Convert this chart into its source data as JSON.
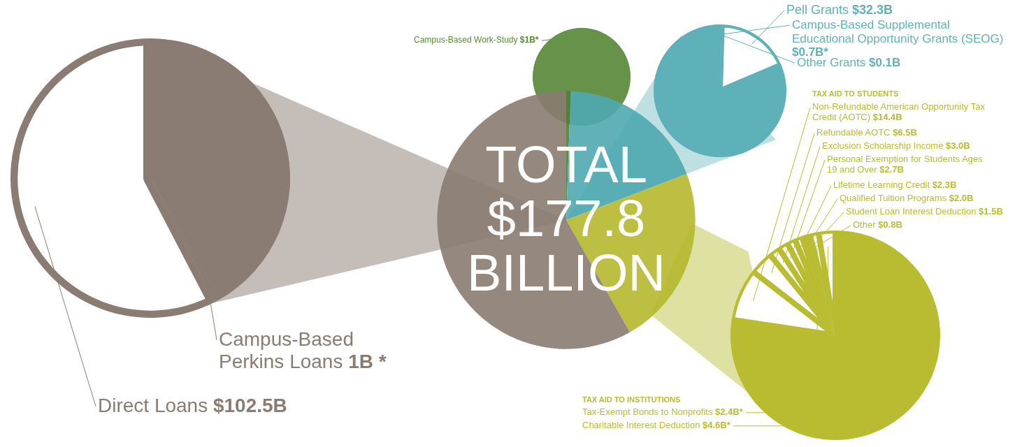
{
  "chart_data": [
    {
      "type": "pie",
      "title": "TOTAL\n$177.8\nBILLION",
      "categories": [
        null,
        null,
        null,
        null
      ],
      "values": [
        0.56,
        18.62,
        22.61,
        58.21
      ],
      "colors": [
        "#4f7f34",
        "#4fa9b1",
        "#b5b92e",
        "#8a7c72"
      ],
      "legend": false
    },
    {
      "type": "pie",
      "categories": [
        null,
        "Campus-Based Perkins Loans",
        "Direct Loans"
      ],
      "values": [
        74.3,
        1,
        102.5
      ],
      "colors": [
        "#8a7c72",
        "#ffffff",
        "#ffffff"
      ],
      "value_labels": [
        null,
        "1B *",
        "$102.5B"
      ],
      "legend": false
    },
    {
      "type": "pie",
      "categories": [
        "Campus-Based Work-Study",
        null
      ],
      "values": [
        1,
        176.8
      ],
      "colors": [
        "#ffffff",
        "#5a8a3a"
      ],
      "value_labels": [
        "$1B*",
        null
      ],
      "legend": false
    },
    {
      "type": "pie",
      "categories": [
        "Other Grants",
        "Campus-Based Supplemental Educational Opportunity Grants (SEOG)",
        "Pell Grants",
        null
      ],
      "values": [
        0.1,
        0.7,
        32.3,
        144.7
      ],
      "colors": [
        "#ffffff",
        "#ffffff",
        "#ffffff",
        "#5fb1b9"
      ],
      "value_labels": [
        "$0.1B",
        "$0.7B*",
        "$32.3B",
        null
      ],
      "legend": false
    },
    {
      "type": "pie",
      "categories": [
        null,
        "Non-Refundable American Opportunity Tax Credit (AOTC)",
        "Refundable AOTC",
        "Exclusion Scholarship Income",
        "Personal Exemption for Students Ages 19 and Over",
        "Lifetime Learning Credit",
        "Qualified Tuition Programs",
        "Student Loan Interest Deduction",
        "Other",
        "Tax-Exempt Bonds to Nonprofits",
        "Charitable Interest Deduction"
      ],
      "values": [
        137.6,
        14.4,
        6.5,
        3.0,
        2.7,
        2.3,
        2.0,
        1.5,
        0.8,
        2.4,
        4.6
      ],
      "colors": [
        "#b9bc30",
        "#ffffff",
        "#ffffff",
        "#ffffff",
        "#ffffff",
        "#ffffff",
        "#ffffff",
        "#ffffff",
        "#ffffff",
        "#ffffff",
        "#ffffff"
      ],
      "value_labels": [
        null,
        "$14.4B",
        "$6.5B",
        "$3.0B",
        "$2.7B",
        "$2.3B",
        "$2.0B",
        "$1.5B",
        "$0.8B",
        "$2.4B*",
        "$4.6B*"
      ],
      "annotations": [
        "TAX AID TO STUDENTS",
        "TAX AID TO INSTITUTIONS"
      ],
      "legend": false
    }
  ]
}
